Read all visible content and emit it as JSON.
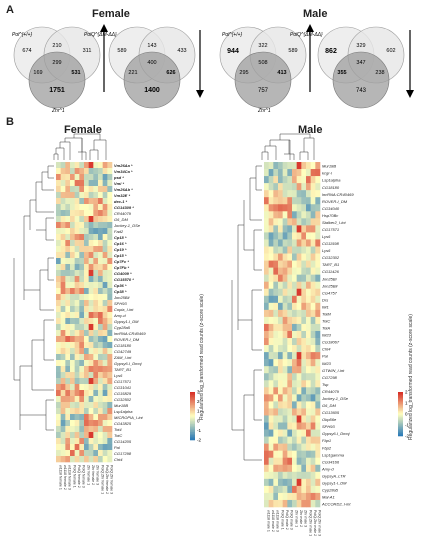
{
  "panel_a": {
    "letter": "A",
    "female_title": "Female",
    "male_title": "Male",
    "venns": [
      {
        "sex": "female",
        "set_left": "Pol^{+/+}",
        "set_right": "PolQ^{ΔM-ΔΔ}",
        "set_bottom": "Zhr^1",
        "numbers": {
          "left_only": "674",
          "left_right": "210",
          "right_only": "311",
          "center": "299",
          "left_bottom": "169",
          "right_bottom": "531",
          "bottom_only": "1751"
        },
        "bold": [
          "bottom_only",
          "right_bottom"
        ],
        "arrow": "up"
      },
      {
        "sex": "female",
        "set_left": "Pol^{+/+}",
        "set_right": "PolQ^{ΔM-ΔΔ}",
        "set_bottom": "Zhr^1",
        "numbers": {
          "left_only": "589",
          "left_right": "143",
          "right_only": "433",
          "center": "400",
          "left_bottom": "221",
          "right_bottom": "626",
          "bottom_only": "1400"
        },
        "bold": [
          "bottom_only",
          "right_bottom"
        ],
        "arrow": "down"
      },
      {
        "sex": "male",
        "set_left": "Pol^{+/+}",
        "set_right": "PolQ^{ΔM-ΔΔ}",
        "set_bottom": "Zhr^1",
        "numbers": {
          "left_only": "944",
          "left_right": "322",
          "right_only": "589",
          "center": "508",
          "left_bottom": "295",
          "right_bottom": "413",
          "bottom_only": "757"
        },
        "bold": [
          "left_only",
          "right_bottom"
        ],
        "arrow": "up"
      },
      {
        "sex": "male",
        "set_left": "Pol^{+/+}",
        "set_right": "PolQ^{ΔM-ΔΔ}",
        "set_bottom": "Zhr^1",
        "numbers": {
          "left_only": "862",
          "left_right": "329",
          "right_only": "602",
          "center": "347",
          "left_bottom": "355",
          "right_bottom": "238",
          "bottom_only": "743"
        },
        "bold": [
          "left_only",
          "left_bottom"
        ],
        "arrow": "down"
      }
    ]
  },
  "panel_b": {
    "letter": "B",
    "female_title": "Female",
    "male_title": "Male",
    "side_label": "Regularized log_transformed read counts (z-score scale)",
    "legend_ticks": [
      "3",
      "2",
      "1",
      "0",
      "-1",
      "-2"
    ],
    "legend_ticks_male": [
      "2",
      "1",
      "0",
      "-1",
      "-2"
    ],
    "female_genes": [
      "Vm26Aa *",
      "Vm34Ca *",
      "psd *",
      "Vml *",
      "Vm26Ab *",
      "Vm32E *",
      "dec-1 *",
      "CG14309 *",
      "CR44079",
      "G6_DM",
      "Jockey-1_DSe",
      "Fad2",
      "Cp18 *",
      "Cp16 *",
      "Cp19 *",
      "Cp15 *",
      "Cp7Fc *",
      "Cp7Fb *",
      "CG4009 *",
      "CG15570 *",
      "Cp36 *",
      "Cp38 *",
      "Jon25Bii",
      "SPH93",
      "Copia_I-int",
      "Amy-d",
      "Gypsy1-I_DM",
      "Cyp28a5",
      "lncRNA:CR40469",
      "ROVER-I_DM",
      "CG18180",
      "CG42749",
      "ZAM_I-int",
      "Gypsy6-I_Dmoj",
      "TART_B1",
      "Lys6",
      "CG17571",
      "CG31041",
      "CG15829",
      "CG32502",
      "Mur18B",
      "Lsp1alpha",
      "MICROPIA_I-int",
      "CG43825",
      "Tot4",
      "TotC",
      "CG14205",
      "Pal",
      "CG17298",
      "Cht4"
    ],
    "male_genes": [
      "Mur18B",
      "kcgr-l",
      "Lsp1alpha",
      "CG18180",
      "lncRNA:CR40469",
      "ROVER-I_DM",
      "CG34040",
      "Hsp70Bc",
      "Stalker2_I-int",
      "CG17571",
      "Lys6",
      "CG11598",
      "Lys6",
      "CG32302",
      "TART_B1",
      "CG11426",
      "Jon25Bi",
      "Jon25Bii",
      "CG4757",
      "Drs",
      "IM1",
      "TotM",
      "TotC",
      "TotA",
      "IM23",
      "CG18067",
      "Cht4",
      "Pal",
      "IM23",
      "GTWIN_I-int",
      "CG7298",
      "Tsp",
      "CR44079",
      "Jockey-1_DSe",
      "G6_DM",
      "CG13605",
      "Obp56e",
      "SPH93",
      "Gypsy6-I_Dmoj",
      "Fbp1",
      "Fbp2",
      "Lsp1gamma",
      "CG34166",
      "Amy-d",
      "GypsyA_LTR",
      "Gypsy1-I_DM",
      "Cyp28a5",
      "Mal-A1",
      "ACCORD2_I-int"
    ],
    "female_samples": [
      "w1118 female 1",
      "w1118 female 2",
      "w1118 female 3",
      "PolQ female 1",
      "PolQ female 2",
      "PolQ female 3",
      "Zhr female 1",
      "Zhr female 2",
      "Zhr female 3",
      "PolQ;Zhr female 1",
      "PolQ;Zhr female 2",
      "PolQ;Zhr female 3"
    ],
    "male_samples": [
      "w1118 male 1",
      "w1118 male 2",
      "w1118 male 3",
      "PolQ male 1",
      "PolQ male 2",
      "PolQ male 3",
      "Zhr male 1",
      "Zhr male 2",
      "Zhr male 3",
      "PolQ;Zhr male 1",
      "PolQ;Zhr male 2",
      "PolQ;Zhr male 3"
    ],
    "colors": {
      "high": "#d73027",
      "mid": "#ffffbf",
      "low": "#2c7bb6"
    }
  }
}
